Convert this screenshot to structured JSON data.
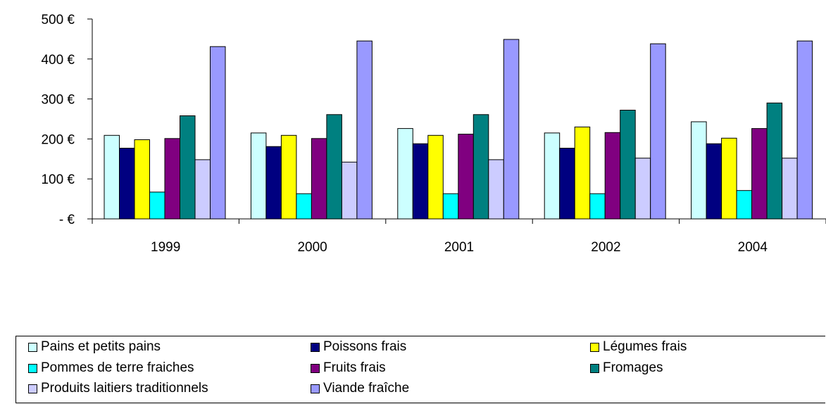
{
  "chart_data": {
    "type": "bar",
    "categories": [
      "1999",
      "2000",
      "2001",
      "2002",
      "2004"
    ],
    "ylim": [
      0,
      500
    ],
    "y_ticks": [
      {
        "value": 0,
        "label": "-     €"
      },
      {
        "value": 100,
        "label": "100 €"
      },
      {
        "value": 200,
        "label": "200 €"
      },
      {
        "value": 300,
        "label": "300 €"
      },
      {
        "value": 400,
        "label": "400 €"
      },
      {
        "value": 500,
        "label": "500 €"
      }
    ],
    "grid": false,
    "legend_position": "bottom",
    "series": [
      {
        "name": "Pains et petits pains",
        "color": "#ccffff",
        "values": [
          209,
          215,
          226,
          215,
          243
        ]
      },
      {
        "name": "Poissons frais",
        "color": "#000080",
        "values": [
          177,
          181,
          188,
          177,
          188
        ]
      },
      {
        "name": "Légumes frais",
        "color": "#ffff00",
        "values": [
          198,
          209,
          209,
          230,
          202
        ]
      },
      {
        "name": "Pommes de terre fraiches",
        "color": "#00ffff",
        "values": [
          67,
          63,
          63,
          63,
          71
        ]
      },
      {
        "name": "Fruits frais",
        "color": "#800080",
        "values": [
          201,
          201,
          212,
          216,
          226
        ]
      },
      {
        "name": "Fromages",
        "color": "#008080",
        "values": [
          258,
          261,
          261,
          272,
          290
        ]
      },
      {
        "name": "Produits laitiers traditionnels",
        "color": "#ccccff",
        "values": [
          148,
          142,
          148,
          152,
          152
        ]
      },
      {
        "name": "Viande fraîche",
        "color": "#9999ff",
        "values": [
          431,
          445,
          449,
          438,
          445
        ]
      }
    ]
  }
}
